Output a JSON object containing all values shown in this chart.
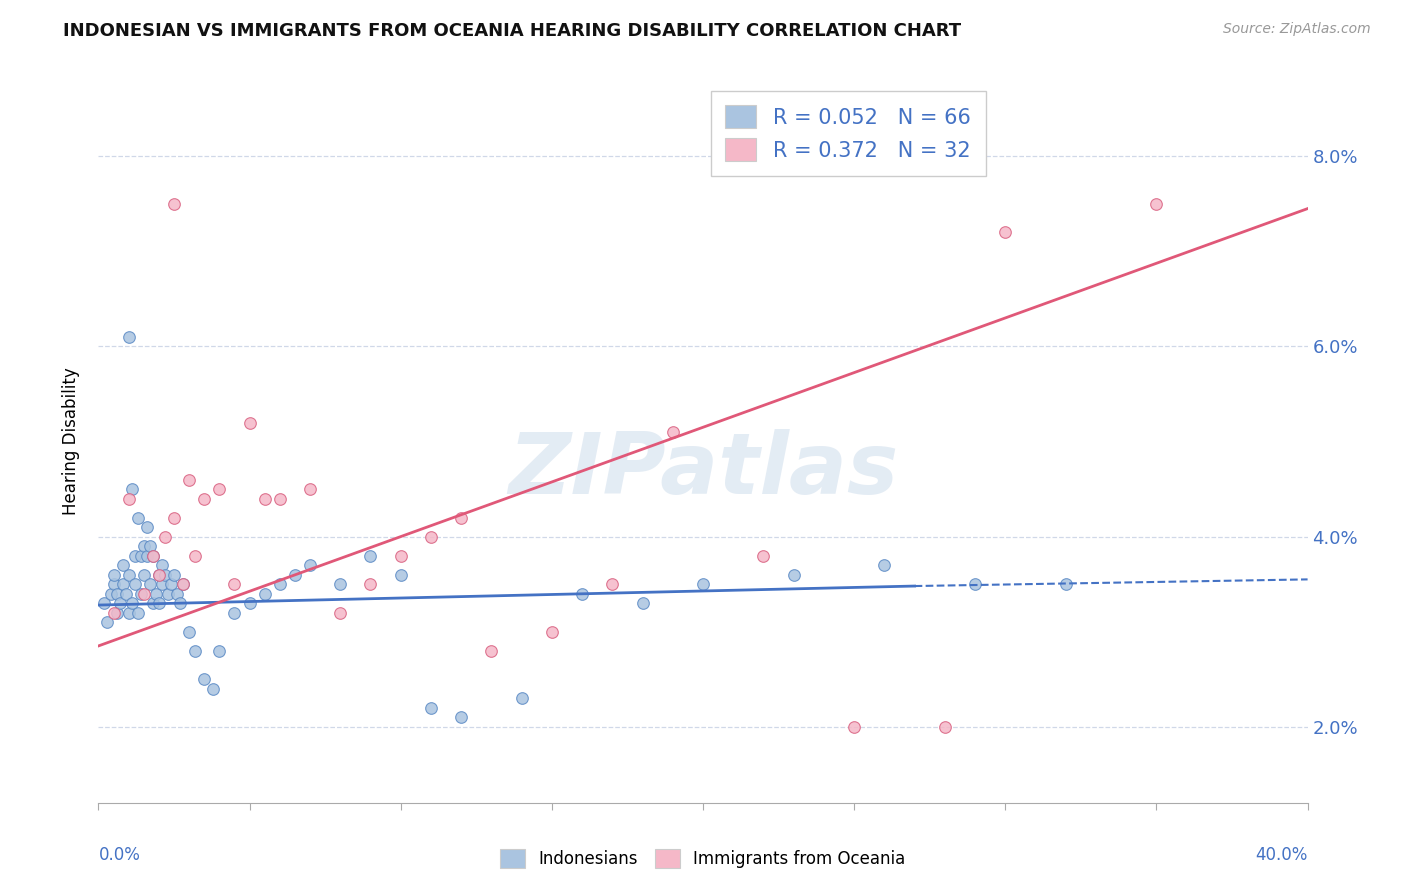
{
  "title": "INDONESIAN VS IMMIGRANTS FROM OCEANIA HEARING DISABILITY CORRELATION CHART",
  "source": "Source: ZipAtlas.com",
  "ylabel": "Hearing Disability",
  "xmin": 0.0,
  "xmax": 40.0,
  "ymin": 1.2,
  "ymax": 8.8,
  "yticks": [
    2.0,
    4.0,
    6.0,
    8.0
  ],
  "blue_color": "#aac4e0",
  "pink_color": "#f5b8c8",
  "blue_edge_color": "#5b8ac5",
  "pink_edge_color": "#d96080",
  "blue_line_color": "#4472c4",
  "pink_line_color": "#e05878",
  "blue_R": "0.052",
  "blue_N": "66",
  "pink_R": "0.372",
  "pink_N": "32",
  "legend_label1": "Indonesians",
  "legend_label2": "Immigrants from Oceania",
  "watermark": "ZIPatlas",
  "blue_scatter_x": [
    0.2,
    0.3,
    0.4,
    0.5,
    0.5,
    0.6,
    0.6,
    0.7,
    0.8,
    0.8,
    0.9,
    1.0,
    1.0,
    1.0,
    1.1,
    1.1,
    1.2,
    1.2,
    1.3,
    1.3,
    1.4,
    1.4,
    1.5,
    1.5,
    1.6,
    1.6,
    1.7,
    1.7,
    1.8,
    1.8,
    1.9,
    2.0,
    2.0,
    2.1,
    2.1,
    2.2,
    2.3,
    2.4,
    2.5,
    2.6,
    2.7,
    2.8,
    3.0,
    3.2,
    3.5,
    3.8,
    4.0,
    4.5,
    5.0,
    5.5,
    6.0,
    6.5,
    7.0,
    8.0,
    9.0,
    10.0,
    11.0,
    12.0,
    14.0,
    16.0,
    18.0,
    20.0,
    23.0,
    26.0,
    29.0,
    32.0
  ],
  "blue_scatter_y": [
    3.3,
    3.1,
    3.4,
    3.5,
    3.6,
    3.2,
    3.4,
    3.3,
    3.5,
    3.7,
    3.4,
    3.2,
    3.6,
    6.1,
    3.3,
    4.5,
    3.5,
    3.8,
    3.2,
    4.2,
    3.4,
    3.8,
    3.6,
    3.9,
    3.8,
    4.1,
    3.5,
    3.9,
    3.3,
    3.8,
    3.4,
    3.6,
    3.3,
    3.7,
    3.5,
    3.6,
    3.4,
    3.5,
    3.6,
    3.4,
    3.3,
    3.5,
    3.0,
    2.8,
    2.5,
    2.4,
    2.8,
    3.2,
    3.3,
    3.4,
    3.5,
    3.6,
    3.7,
    3.5,
    3.8,
    3.6,
    2.2,
    2.1,
    2.3,
    3.4,
    3.3,
    3.5,
    3.6,
    3.7,
    3.5,
    3.5
  ],
  "pink_scatter_x": [
    0.5,
    1.0,
    1.5,
    1.8,
    2.0,
    2.2,
    2.5,
    2.5,
    2.8,
    3.0,
    3.2,
    3.5,
    4.0,
    4.5,
    5.0,
    5.5,
    6.0,
    7.0,
    8.0,
    9.0,
    10.0,
    11.0,
    12.0,
    13.0,
    15.0,
    17.0,
    19.0,
    22.0,
    25.0,
    28.0,
    30.0,
    35.0
  ],
  "pink_scatter_y": [
    3.2,
    4.4,
    3.4,
    3.8,
    3.6,
    4.0,
    4.2,
    7.5,
    3.5,
    4.6,
    3.8,
    4.4,
    4.5,
    3.5,
    5.2,
    4.4,
    4.4,
    4.5,
    3.2,
    3.5,
    3.8,
    4.0,
    4.2,
    2.8,
    3.0,
    3.5,
    5.1,
    3.8,
    2.0,
    2.0,
    7.2,
    7.5
  ],
  "blue_trend_x1": 0.0,
  "blue_trend_x2": 27.0,
  "blue_trend_x2_dashed": 40.0,
  "blue_trend_y1": 3.28,
  "blue_trend_y2": 3.48,
  "blue_trend_y2_dashed": 3.55,
  "pink_trend_x1": 0.0,
  "pink_trend_x2": 40.0,
  "pink_trend_y1": 2.85,
  "pink_trend_y2": 7.45,
  "background_color": "#ffffff",
  "grid_color": "#d0d8e8"
}
